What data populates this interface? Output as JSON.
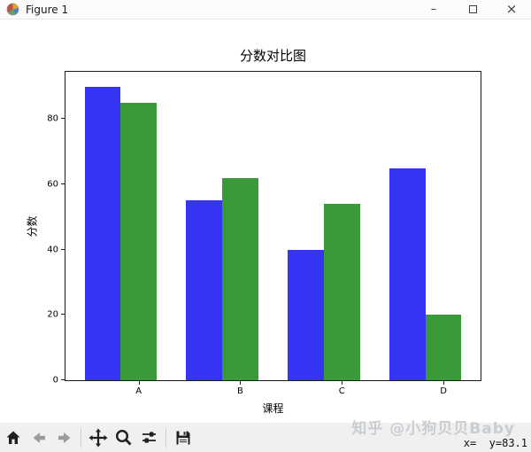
{
  "window": {
    "title": "Figure 1",
    "controls": {
      "minimize_glyph": "–",
      "close_glyph": "×"
    }
  },
  "icons": {
    "titlebar": [
      "matplotlib-logo-icon",
      "minimize-icon",
      "maximize-icon",
      "close-icon"
    ],
    "toolbar": [
      "home-icon",
      "back-arrow-icon",
      "forward-arrow-icon",
      "pan-icon",
      "zoom-icon",
      "configure-subplots-icon",
      "save-icon"
    ]
  },
  "toolbar": {
    "status": "x=  y=83.1"
  },
  "watermark": "知乎 @小狗贝贝Baby",
  "chart_data": {
    "type": "bar",
    "title": "分数对比图",
    "xlabel": "课程",
    "ylabel": "分数",
    "categories": [
      "A",
      "B",
      "C",
      "D"
    ],
    "series": [
      {
        "name": "blue",
        "color": "#3434f2",
        "offset": -0.355,
        "values": [
          90,
          55,
          40,
          65
        ]
      },
      {
        "name": "green",
        "color": "#3a9a3a",
        "offset": 0,
        "values": [
          85,
          62,
          54,
          20
        ]
      }
    ],
    "bar_width": 0.355,
    "xlim": [
      -0.72,
      3.365
    ],
    "ylim": [
      0,
      94.5
    ],
    "yticks": [
      0,
      20,
      40,
      60,
      80
    ],
    "grid": false,
    "legend": "none"
  }
}
